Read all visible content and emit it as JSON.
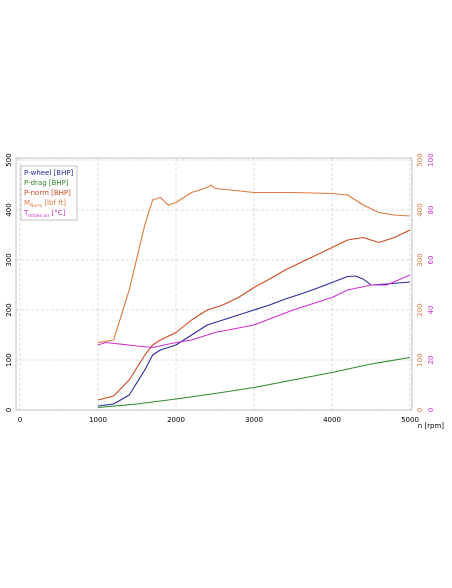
{
  "chart_data": {
    "type": "line",
    "x_label": "n [rpm]",
    "xlim": [
      0,
      5000
    ],
    "xticks": [
      0,
      1000,
      2000,
      3000,
      4000,
      5000
    ],
    "ylim": [
      0,
      500
    ],
    "yticks": [
      0,
      100,
      200,
      300,
      400,
      500
    ],
    "y2lim": [
      0,
      500
    ],
    "y2ticks": [
      0,
      100,
      200,
      300,
      400,
      500
    ],
    "y2color": "#e07840",
    "y3lim": [
      0,
      100
    ],
    "y3ticks": [
      0,
      20,
      40,
      60,
      80,
      100
    ],
    "y3color": "#d030d0",
    "grid": true,
    "legend": "top-left",
    "series": [
      {
        "name": "P-wheel [BHP]",
        "color": "#2a2a9a",
        "axis": "y",
        "x": [
          1000,
          1200,
          1400,
          1600,
          1700,
          1800,
          2000,
          2200,
          2400,
          2600,
          2800,
          3000,
          3200,
          3400,
          3600,
          3800,
          4000,
          4200,
          4300,
          4400,
          4500,
          4700,
          5000
        ],
        "values": [
          8,
          12,
          30,
          80,
          110,
          120,
          130,
          150,
          170,
          180,
          190,
          200,
          210,
          222,
          232,
          243,
          255,
          267,
          268,
          262,
          250,
          252,
          256
        ]
      },
      {
        "name": "P-drag [BHP]",
        "color": "#2e8b2e",
        "axis": "y",
        "x": [
          1000,
          1500,
          2000,
          2500,
          3000,
          3500,
          4000,
          4500,
          5000
        ],
        "values": [
          5,
          12,
          22,
          33,
          45,
          60,
          75,
          92,
          105
        ]
      },
      {
        "name": "P-norm [BHP]",
        "color": "#d04a20",
        "axis": "y",
        "x": [
          1000,
          1200,
          1400,
          1600,
          1700,
          1800,
          2000,
          2200,
          2400,
          2600,
          2800,
          3000,
          3200,
          3400,
          3600,
          3800,
          4000,
          4200,
          4400,
          4600,
          4800,
          5000
        ],
        "values": [
          20,
          28,
          60,
          110,
          130,
          140,
          155,
          180,
          200,
          210,
          225,
          245,
          262,
          280,
          295,
          310,
          325,
          340,
          345,
          335,
          345,
          360
        ]
      },
      {
        "name": "M",
        "name_sub": "Norm",
        "name_unit": "[lbf ft]",
        "color": "#e07840",
        "axis": "y2",
        "x": [
          1000,
          1200,
          1400,
          1600,
          1700,
          1800,
          1900,
          2000,
          2200,
          2400,
          2450,
          2500,
          2700,
          3000,
          3500,
          4000,
          4200,
          4400,
          4600,
          4800,
          5000
        ],
        "values": [
          135,
          140,
          240,
          370,
          420,
          425,
          410,
          415,
          435,
          445,
          450,
          443,
          440,
          435,
          435,
          433,
          430,
          410,
          395,
          390,
          388
        ]
      },
      {
        "name": "T",
        "name_sub": "Intake air",
        "name_unit": "[°C]",
        "color": "#d030d0",
        "axis": "y3",
        "x": [
          1000,
          1100,
          1500,
          1700,
          2000,
          2200,
          2500,
          3000,
          3500,
          4000,
          4200,
          4500,
          4700,
          5000
        ],
        "values": [
          26,
          27,
          25.6,
          25,
          27,
          28,
          31,
          34,
          40,
          45,
          48,
          50,
          50,
          54
        ]
      }
    ]
  }
}
